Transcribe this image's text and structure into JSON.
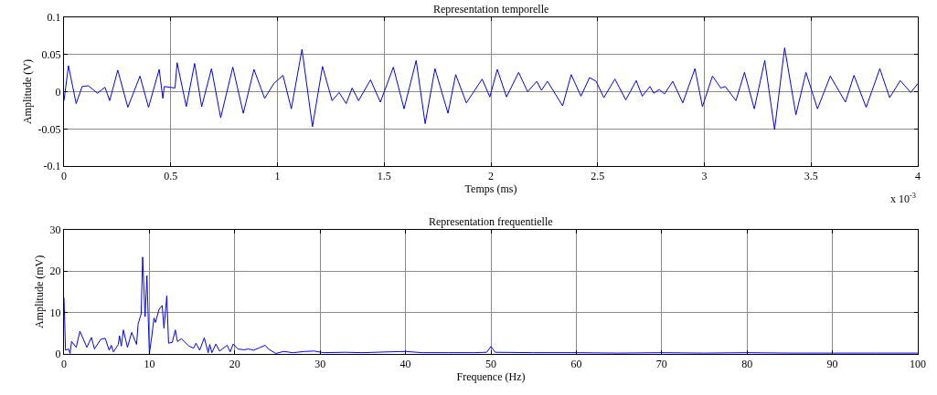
{
  "chart_data": [
    {
      "type": "line",
      "title": "Representation temporelle",
      "xlabel": "Temps (ms)",
      "ylabel": "Amplitude (V)",
      "annotations": [
        "x 10$^{-3}$"
      ],
      "xlim": [
        0,
        4
      ],
      "xticks": [
        0,
        0.5,
        1,
        1.5,
        2,
        2.5,
        3,
        3.5,
        4
      ],
      "ylim": [
        -0.1,
        0.1
      ],
      "yticks": [
        -0.1,
        -0.05,
        0,
        0.05,
        0.1
      ],
      "grid": true,
      "line_style": "solid",
      "series": [
        {
          "color": "#0000ff",
          "x": [
            0,
            0.021,
            0.057,
            0.085,
            0.114,
            0.157,
            0.192,
            0.214,
            0.252,
            0.299,
            0.356,
            0.396,
            0.446,
            0.463,
            0.47,
            0.52,
            0.53,
            0.573,
            0.612,
            0.645,
            0.691,
            0.734,
            0.791,
            0.84,
            0.89,
            0.94,
            0.983,
            1.026,
            1.065,
            1.115,
            1.164,
            1.211,
            1.256,
            1.289,
            1.322,
            1.35,
            1.38,
            1.436,
            1.482,
            1.543,
            1.593,
            1.65,
            1.692,
            1.738,
            1.799,
            1.835,
            1.885,
            1.959,
            1.995,
            2.03,
            2.073,
            2.13,
            2.172,
            2.215,
            2.237,
            2.265,
            2.336,
            2.376,
            2.422,
            2.462,
            2.493,
            2.529,
            2.581,
            2.632,
            2.681,
            2.709,
            2.745,
            2.763,
            2.789,
            2.813,
            2.852,
            2.899,
            2.956,
            2.991,
            3.038,
            3.077,
            3.098,
            3.148,
            3.188,
            3.234,
            3.283,
            3.329,
            3.376,
            3.429,
            3.476,
            3.53,
            3.59,
            3.661,
            3.701,
            3.758,
            3.822,
            3.868,
            3.918,
            3.967,
            4.0
          ],
          "values": [
            -0.012,
            0.035,
            -0.016,
            0.007,
            0.008,
            -0.002,
            0.006,
            -0.012,
            0.029,
            -0.021,
            0.021,
            -0.021,
            0.03,
            -0.009,
            0.007,
            0.005,
            0.039,
            -0.02,
            0.038,
            -0.02,
            0.031,
            -0.035,
            0.033,
            -0.029,
            0.03,
            -0.009,
            0.011,
            0.022,
            -0.023,
            0.057,
            -0.047,
            0.034,
            -0.012,
            -0.001,
            -0.016,
            0.005,
            -0.012,
            0.016,
            -0.014,
            0.033,
            -0.023,
            0.042,
            -0.043,
            0.031,
            -0.029,
            0.023,
            -0.015,
            0.017,
            -0.007,
            0.03,
            -0.007,
            0.026,
            0.0,
            0.014,
            0.002,
            0.014,
            -0.019,
            0.023,
            -0.006,
            0.019,
            0.014,
            -0.008,
            0.017,
            -0.011,
            0.015,
            -0.006,
            0.007,
            -0.002,
            0.003,
            -0.003,
            0.014,
            -0.015,
            0.031,
            -0.02,
            0.021,
            0.005,
            0.007,
            -0.012,
            0.026,
            -0.023,
            0.042,
            -0.051,
            0.059,
            -0.031,
            0.026,
            -0.023,
            0.021,
            -0.014,
            0.022,
            -0.021,
            0.031,
            -0.008,
            0.015,
            -0.001,
            0.011
          ]
        }
      ]
    },
    {
      "type": "line",
      "title": "Representation frequentielle",
      "xlabel": "Frequence (Hz)",
      "ylabel": "Amplitude (mV)",
      "xlim": [
        0,
        100
      ],
      "xticks": [
        0,
        10,
        20,
        30,
        40,
        50,
        60,
        70,
        80,
        90,
        100
      ],
      "ylim": [
        0,
        30
      ],
      "yticks": [
        0,
        10,
        20,
        30
      ],
      "grid": true,
      "line_style": "solid",
      "series": [
        {
          "color": "#0000ff",
          "x": [
            0,
            0.18,
            0.54,
            0.71,
            0.89,
            1.43,
            1.86,
            2.68,
            3.21,
            3.57,
            4.29,
            4.82,
            5.29,
            5.54,
            5.79,
            6.36,
            6.5,
            6.71,
            6.96,
            7.43,
            7.93,
            8.5,
            8.68,
            9.04,
            9.21,
            9.5,
            9.71,
            10.0,
            10.29,
            10.54,
            10.71,
            11.14,
            11.5,
            11.71,
            12.04,
            12.25,
            12.68,
            13.04,
            13.29,
            13.75,
            14.64,
            15.18,
            15.46,
            15.89,
            16.43,
            16.89,
            17.07,
            17.32,
            17.79,
            18.21,
            19.11,
            19.46,
            19.82,
            20.36,
            21.07,
            21.61,
            22.21,
            23.57,
            23.93,
            24.82,
            25.7,
            26.8,
            28.2,
            29.3,
            30.4,
            32.9,
            35,
            38,
            40,
            42,
            45,
            48,
            49.5,
            50,
            50.5,
            55,
            60,
            65,
            70,
            75,
            80,
            85,
            90,
            95,
            100
          ],
          "values": [
            13.6,
            0.9,
            1.2,
            0.1,
            3.0,
            1.6,
            5.5,
            1.6,
            4.0,
            1.2,
            3.5,
            3.8,
            0.9,
            2.1,
            0.5,
            2.3,
            4.4,
            1.9,
            5.8,
            1.6,
            5.2,
            2.3,
            7.2,
            9.7,
            23.4,
            9.0,
            18.9,
            0.1,
            4.4,
            8.7,
            7.6,
            10.8,
            11.7,
            6.2,
            14.0,
            2.6,
            2.8,
            5.8,
            3.0,
            3.7,
            1.9,
            1.4,
            2.6,
            0.9,
            3.9,
            0.3,
            2.3,
            0.3,
            2.4,
            0.7,
            2.1,
            0.5,
            2.4,
            1.2,
            1.0,
            1.2,
            0.9,
            2.1,
            1.2,
            0.1,
            0.6,
            0.3,
            0.6,
            0.7,
            0.3,
            0.4,
            0.3,
            0.5,
            0.6,
            0.3,
            0.3,
            0.3,
            0.4,
            1.8,
            0.4,
            0.3,
            0.3,
            0.2,
            0.3,
            0.2,
            0.3,
            0.2,
            0.2,
            0.2,
            0.2
          ]
        }
      ]
    }
  ]
}
